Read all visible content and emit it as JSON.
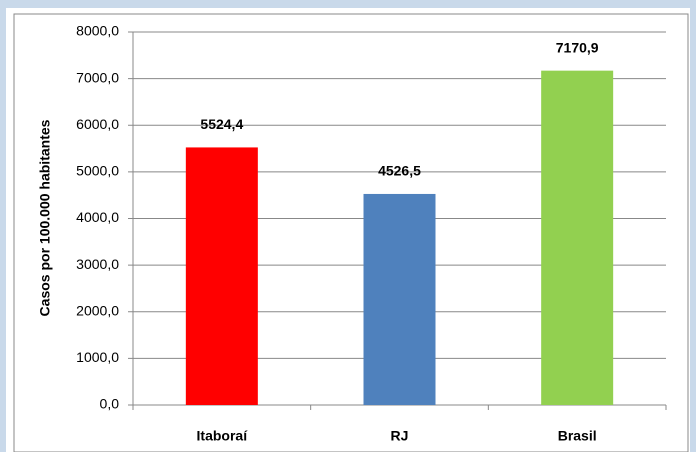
{
  "chart_data": {
    "type": "bar",
    "ylabel": "Casos por 100.000 habitantes",
    "categories": [
      "Itaboraí",
      "RJ",
      "Brasil"
    ],
    "values": [
      5524.4,
      4526.5,
      7170.9
    ],
    "value_labels": [
      "5524,4",
      "4526,5",
      "7170,9"
    ],
    "colors": [
      "#ff0000",
      "#4f81bd",
      "#92d050"
    ],
    "ylim": [
      0,
      8000
    ],
    "yticks": [
      {
        "value": 0,
        "label": "0,0"
      },
      {
        "value": 1000,
        "label": "1000,0"
      },
      {
        "value": 2000,
        "label": "2000,0"
      },
      {
        "value": 3000,
        "label": "3000,0"
      },
      {
        "value": 4000,
        "label": "4000,0"
      },
      {
        "value": 5000,
        "label": "5000,0"
      },
      {
        "value": 6000,
        "label": "6000,0"
      },
      {
        "value": 7000,
        "label": "7000,0"
      },
      {
        "value": 8000,
        "label": "8000,0"
      }
    ],
    "grid": true
  }
}
